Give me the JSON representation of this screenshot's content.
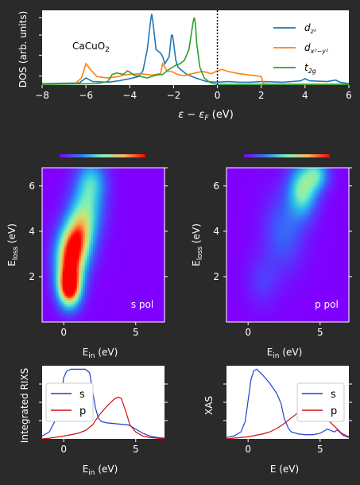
{
  "colors": {
    "background": "#2a2a2a",
    "text": "#ffffff",
    "dz2": "#1f77b4",
    "dx2y2": "#ff7f0e",
    "t2g": "#2ca02c",
    "s_line": "#1f3fd0",
    "p_line": "#d01010"
  },
  "chart_data": [
    {
      "id": "dos",
      "type": "line",
      "annotation": "CaCuO",
      "annotation_sub": "2",
      "xlabel": "ε − ε",
      "xlabel_sub": "F",
      "xlabel_unit": " (eV)",
      "ylabel": "DOS (arb. units)",
      "xlim": [
        -8,
        6
      ],
      "xticks": [
        -8,
        -6,
        -4,
        -2,
        0,
        2,
        4,
        6
      ],
      "tick_labels": [
        "−8",
        "−6",
        "−4",
        "−2",
        "0",
        "2",
        "4",
        "6"
      ],
      "vline": 0,
      "legend": [
        "d",
        "d",
        "t"
      ],
      "legend_sub": [
        "z²",
        "x²−y²",
        "2g"
      ],
      "series": [
        {
          "name": "dz2",
          "x": [
            -8,
            -6.3,
            -6.0,
            -5.7,
            -5.0,
            -4.5,
            -4.0,
            -3.6,
            -3.4,
            -3.2,
            -3.05,
            -3.0,
            -2.95,
            -2.8,
            -2.6,
            -2.5,
            -2.4,
            -2.2,
            -2.1,
            -2.05,
            -2.0,
            -1.9,
            -1.8,
            -1.6,
            -1.4,
            -1.0,
            -0.5,
            0,
            0.5,
            1.0,
            1.5,
            2.0,
            3.0,
            3.8,
            4.0,
            4.2,
            5.0,
            5.4,
            5.6,
            6
          ],
          "y": [
            0.02,
            0.03,
            0.1,
            0.05,
            0.04,
            0.06,
            0.09,
            0.12,
            0.2,
            0.5,
            0.9,
            1.0,
            0.9,
            0.5,
            0.45,
            0.4,
            0.3,
            0.4,
            0.7,
            0.7,
            0.6,
            0.35,
            0.25,
            0.2,
            0.15,
            0.1,
            0.05,
            0.04,
            0.05,
            0.04,
            0.04,
            0.05,
            0.04,
            0.06,
            0.09,
            0.06,
            0.05,
            0.07,
            0.04,
            0.02
          ]
        },
        {
          "name": "dx2y2",
          "x": [
            -8,
            -6.5,
            -6.2,
            -6.0,
            -5.8,
            -5.5,
            -5.0,
            -4.5,
            -4.3,
            -4.0,
            -3.5,
            -3.0,
            -2.6,
            -2.5,
            -2.3,
            -2.0,
            -1.9,
            -1.7,
            -1.5,
            -1.3,
            -1.0,
            -0.7,
            -0.5,
            -0.3,
            -0.2,
            0,
            0.2,
            0.5,
            1.0,
            1.5,
            2.0,
            2.1,
            2.3,
            3.0,
            4.0,
            5.0,
            6
          ],
          "y": [
            0.01,
            0.02,
            0.1,
            0.3,
            0.22,
            0.12,
            0.1,
            0.12,
            0.14,
            0.15,
            0.16,
            0.14,
            0.16,
            0.3,
            0.2,
            0.18,
            0.16,
            0.14,
            0.13,
            0.15,
            0.17,
            0.19,
            0.18,
            0.16,
            0.17,
            0.2,
            0.22,
            0.19,
            0.16,
            0.14,
            0.12,
            0.02,
            0.01,
            0.01,
            0.01,
            0.01,
            0.01
          ]
        },
        {
          "name": "t2g",
          "x": [
            -8,
            -5.5,
            -5.0,
            -4.8,
            -4.6,
            -4.3,
            -4.1,
            -3.8,
            -3.5,
            -3.2,
            -3.0,
            -2.8,
            -2.5,
            -2.3,
            -2.1,
            -1.9,
            -1.7,
            -1.5,
            -1.3,
            -1.2,
            -1.1,
            -1.05,
            -1.0,
            -0.95,
            -0.8,
            -0.6,
            -0.4,
            -0.2,
            0,
            0.5,
            1,
            6
          ],
          "y": [
            0.01,
            0.02,
            0.05,
            0.15,
            0.17,
            0.15,
            0.2,
            0.14,
            0.12,
            0.1,
            0.12,
            0.14,
            0.15,
            0.2,
            0.24,
            0.28,
            0.3,
            0.35,
            0.5,
            0.7,
            0.9,
            0.95,
            0.85,
            0.6,
            0.25,
            0.1,
            0.05,
            0.02,
            0.01,
            0.01,
            0.01,
            0.01
          ]
        }
      ]
    },
    {
      "id": "rixs_s",
      "type": "heatmap",
      "label": "s pol",
      "xlabel": "E",
      "xlabel_sub": "in",
      "xlabel_unit": " (eV)",
      "ylabel": "E",
      "ylabel_sub": "loss",
      "ylabel_unit": " (eV)",
      "xlim": [
        -1.5,
        7
      ],
      "ylim": [
        0,
        6.8
      ],
      "xticks": [
        0,
        5
      ],
      "yticks": [
        2,
        4,
        6
      ],
      "features": [
        {
          "ein": 0.4,
          "eloss": 1.5,
          "sx": 0.55,
          "sy": 0.6,
          "amp": 1.0
        },
        {
          "ein": 0.4,
          "eloss": 2.8,
          "sx": 0.7,
          "sy": 0.9,
          "amp": 0.85
        },
        {
          "ein": 1.1,
          "eloss": 3.8,
          "sx": 0.7,
          "sy": 0.9,
          "amp": 0.6
        },
        {
          "ein": 1.7,
          "eloss": 5.2,
          "sx": 0.8,
          "sy": 1.0,
          "amp": 0.4
        },
        {
          "ein": 2.0,
          "eloss": 6.3,
          "sx": 0.7,
          "sy": 0.6,
          "amp": 0.25
        }
      ]
    },
    {
      "id": "rixs_p",
      "type": "heatmap",
      "label": "p pol",
      "xlabel": "E",
      "xlabel_sub": "in",
      "xlabel_unit": " (eV)",
      "ylabel": "E",
      "ylabel_sub": "loss",
      "ylabel_unit": " (eV)",
      "xlim": [
        -1.5,
        7
      ],
      "ylim": [
        0,
        6.8
      ],
      "xticks": [
        0,
        5
      ],
      "yticks": [
        2,
        4,
        6
      ],
      "features": [
        {
          "ein": 3.8,
          "eloss": 5.8,
          "sx": 0.7,
          "sy": 0.8,
          "amp": 0.55
        },
        {
          "ein": 4.8,
          "eloss": 6.5,
          "sx": 0.6,
          "sy": 0.5,
          "amp": 0.4
        },
        {
          "ein": 2.5,
          "eloss": 4.0,
          "sx": 1.0,
          "sy": 1.2,
          "amp": 0.22
        },
        {
          "ein": 1.0,
          "eloss": 1.8,
          "sx": 0.8,
          "sy": 0.8,
          "amp": 0.12
        }
      ]
    },
    {
      "id": "int_rixs",
      "type": "line",
      "xlabel": "E",
      "xlabel_sub": "in",
      "xlabel_unit": " (eV)",
      "ylabel": "Integrated RIXS",
      "xlim": [
        -1.5,
        7
      ],
      "ylim": [
        0,
        1.05
      ],
      "xticks": [
        0,
        5
      ],
      "legend": [
        "s",
        "p"
      ],
      "series": [
        {
          "name": "s",
          "x": [
            -1.5,
            -1,
            -0.5,
            -0.2,
            0,
            0.2,
            0.5,
            1,
            1.5,
            1.8,
            2.0,
            2.2,
            2.4,
            2.6,
            3,
            3.5,
            4,
            4.5,
            5,
            5.5,
            6,
            6.5,
            7
          ],
          "y": [
            0.04,
            0.1,
            0.3,
            0.6,
            0.88,
            0.97,
            1.0,
            1.0,
            1.0,
            0.95,
            0.7,
            0.45,
            0.3,
            0.25,
            0.23,
            0.22,
            0.21,
            0.2,
            0.14,
            0.08,
            0.04,
            0.02,
            0.01
          ]
        },
        {
          "name": "p",
          "x": [
            -1.5,
            -1,
            0,
            1,
            1.5,
            2,
            2.5,
            3,
            3.5,
            3.8,
            4,
            4.3,
            4.6,
            5,
            5.5,
            6,
            7
          ],
          "y": [
            0.0,
            0.01,
            0.04,
            0.08,
            0.12,
            0.2,
            0.35,
            0.47,
            0.57,
            0.6,
            0.58,
            0.4,
            0.2,
            0.1,
            0.04,
            0.02,
            0.0
          ]
        }
      ]
    },
    {
      "id": "xas",
      "type": "line",
      "xlabel": "E (eV)",
      "ylabel": "XAS",
      "xlim": [
        -1.5,
        7
      ],
      "ylim": [
        0,
        1.05
      ],
      "xticks": [
        0,
        5
      ],
      "legend": [
        "s",
        "p"
      ],
      "series": [
        {
          "name": "s",
          "x": [
            -1.5,
            -1,
            -0.5,
            -0.2,
            0,
            0.2,
            0.4,
            0.6,
            1,
            1.5,
            2,
            2.3,
            2.5,
            2.8,
            3,
            3.5,
            4,
            4.5,
            5,
            5.5,
            6,
            6.2,
            6.6,
            7
          ],
          "y": [
            0.02,
            0.04,
            0.1,
            0.25,
            0.55,
            0.85,
            0.98,
            1.0,
            0.92,
            0.8,
            0.65,
            0.5,
            0.3,
            0.15,
            0.1,
            0.07,
            0.06,
            0.06,
            0.08,
            0.14,
            0.1,
            0.13,
            0.05,
            0.02
          ]
        },
        {
          "name": "p",
          "x": [
            -1.5,
            -1,
            0,
            0.5,
            1,
            1.5,
            2,
            2.5,
            3,
            3.5,
            4,
            4.3,
            4.6,
            4.8,
            5.0,
            5.2,
            5.5,
            6,
            6.5,
            7
          ],
          "y": [
            0.0,
            0.01,
            0.03,
            0.05,
            0.07,
            0.1,
            0.15,
            0.22,
            0.3,
            0.38,
            0.45,
            0.38,
            0.35,
            0.38,
            0.42,
            0.36,
            0.28,
            0.18,
            0.08,
            0.03
          ]
        }
      ]
    }
  ]
}
